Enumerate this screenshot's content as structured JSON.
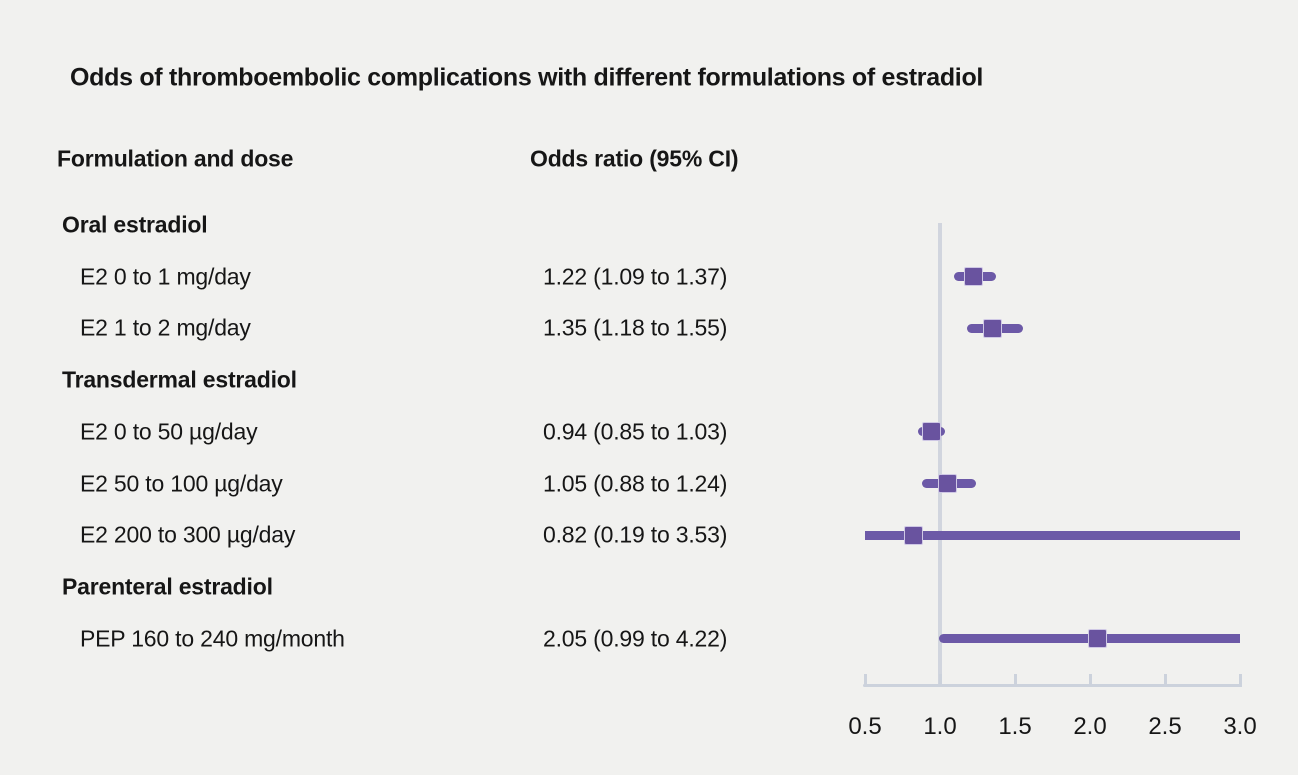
{
  "chart_data": {
    "type": "forest",
    "title": "Odds of thromboembolic complications with different formulations of estradiol",
    "col_headers": {
      "label": "Formulation and dose",
      "value": "Odds ratio (95% CI)"
    },
    "axis": {
      "min": 0.5,
      "max": 3.0,
      "tick_values": [
        0.5,
        1.0,
        1.5,
        2.0,
        2.5,
        3.0
      ],
      "tick_labels": [
        "0.5",
        "1.0",
        "1.5",
        "2.0",
        "2.5",
        "3.0"
      ],
      "reference_value": 1.0
    },
    "groups": [
      {
        "label": "Oral estradiol",
        "items": [
          {
            "label": "E2 0 to 1 mg/day",
            "or_text": "1.22 (1.09 to 1.37)",
            "est": 1.22,
            "lo": 1.09,
            "hi": 1.37
          },
          {
            "label": "E2 1 to 2 mg/day",
            "or_text": "1.35 (1.18 to 1.55)",
            "est": 1.35,
            "lo": 1.18,
            "hi": 1.55
          }
        ]
      },
      {
        "label": "Transdermal estradiol",
        "items": [
          {
            "label": "E2 0 to 50 µg/day",
            "or_text": "0.94 (0.85 to 1.03)",
            "est": 0.94,
            "lo": 0.85,
            "hi": 1.03
          },
          {
            "label": "E2 50 to 100 µg/day",
            "or_text": "1.05 (0.88 to 1.24)",
            "est": 1.05,
            "lo": 0.88,
            "hi": 1.24
          },
          {
            "label": "E2 200 to 300 µg/day",
            "or_text": "0.82 (0.19 to 3.53)",
            "est": 0.82,
            "lo": 0.19,
            "hi": 3.53
          }
        ]
      },
      {
        "label": "Parenteral estradiol",
        "items": [
          {
            "label": "PEP 160 to 240 mg/month",
            "or_text": "2.05 (0.99 to 4.22)",
            "est": 2.05,
            "lo": 0.99,
            "hi": 4.22
          }
        ]
      }
    ],
    "colors": {
      "background": "#f1f1ef",
      "text": "#161616",
      "ci_bar": "#6c59a7",
      "estimate_square": "#69539f",
      "square_halo": "#cfc8e5",
      "axis_line": "#ccd2dc",
      "reference_line": "#d1d5de"
    }
  }
}
